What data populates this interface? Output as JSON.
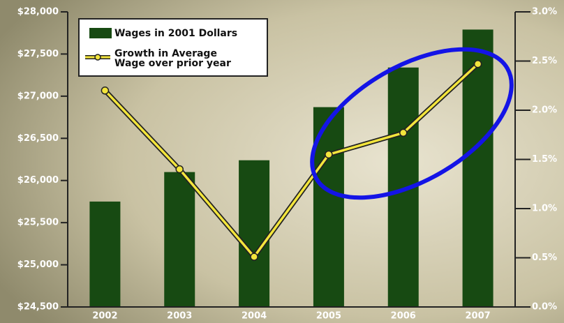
{
  "chart_data": {
    "type": "bar-line",
    "categories": [
      "2002",
      "2003",
      "2004",
      "2005",
      "2006",
      "2007"
    ],
    "series": [
      {
        "name": "Wages in 2001 Dollars",
        "color": "#174a12",
        "type": "bar",
        "values": [
          25750,
          26100,
          26240,
          26870,
          27340,
          27790
        ]
      },
      {
        "name": "Growth in Average Wage over prior year",
        "color": "#f3e53c",
        "type": "line",
        "axis": "y2",
        "values": [
          2.2,
          1.4,
          0.51,
          1.55,
          1.77,
          2.47
        ]
      }
    ],
    "ylim": [
      24500,
      28000
    ],
    "yticks": [
      {
        "value": 24500,
        "label": "$24,500"
      },
      {
        "value": 25000,
        "label": "$25,000"
      },
      {
        "value": 25500,
        "label": "$25,500"
      },
      {
        "value": 26000,
        "label": "$26,000"
      },
      {
        "value": 26500,
        "label": "$26,500"
      },
      {
        "value": 27000,
        "label": "$27,000"
      },
      {
        "value": 27500,
        "label": "$27,500"
      },
      {
        "value": 28000,
        "label": "$28,000"
      }
    ],
    "y2lim": [
      0,
      3
    ],
    "y2ticks": [
      {
        "value": 0,
        "label": "0.0%"
      },
      {
        "value": 0.5,
        "label": "0.5%"
      },
      {
        "value": 1,
        "label": "1.0%"
      },
      {
        "value": 1.5,
        "label": "1.5%"
      },
      {
        "value": 2,
        "label": "2.0%"
      },
      {
        "value": 2.5,
        "label": "2.5%"
      },
      {
        "value": 3,
        "label": "3.0%"
      }
    ],
    "legend": "upper left"
  }
}
